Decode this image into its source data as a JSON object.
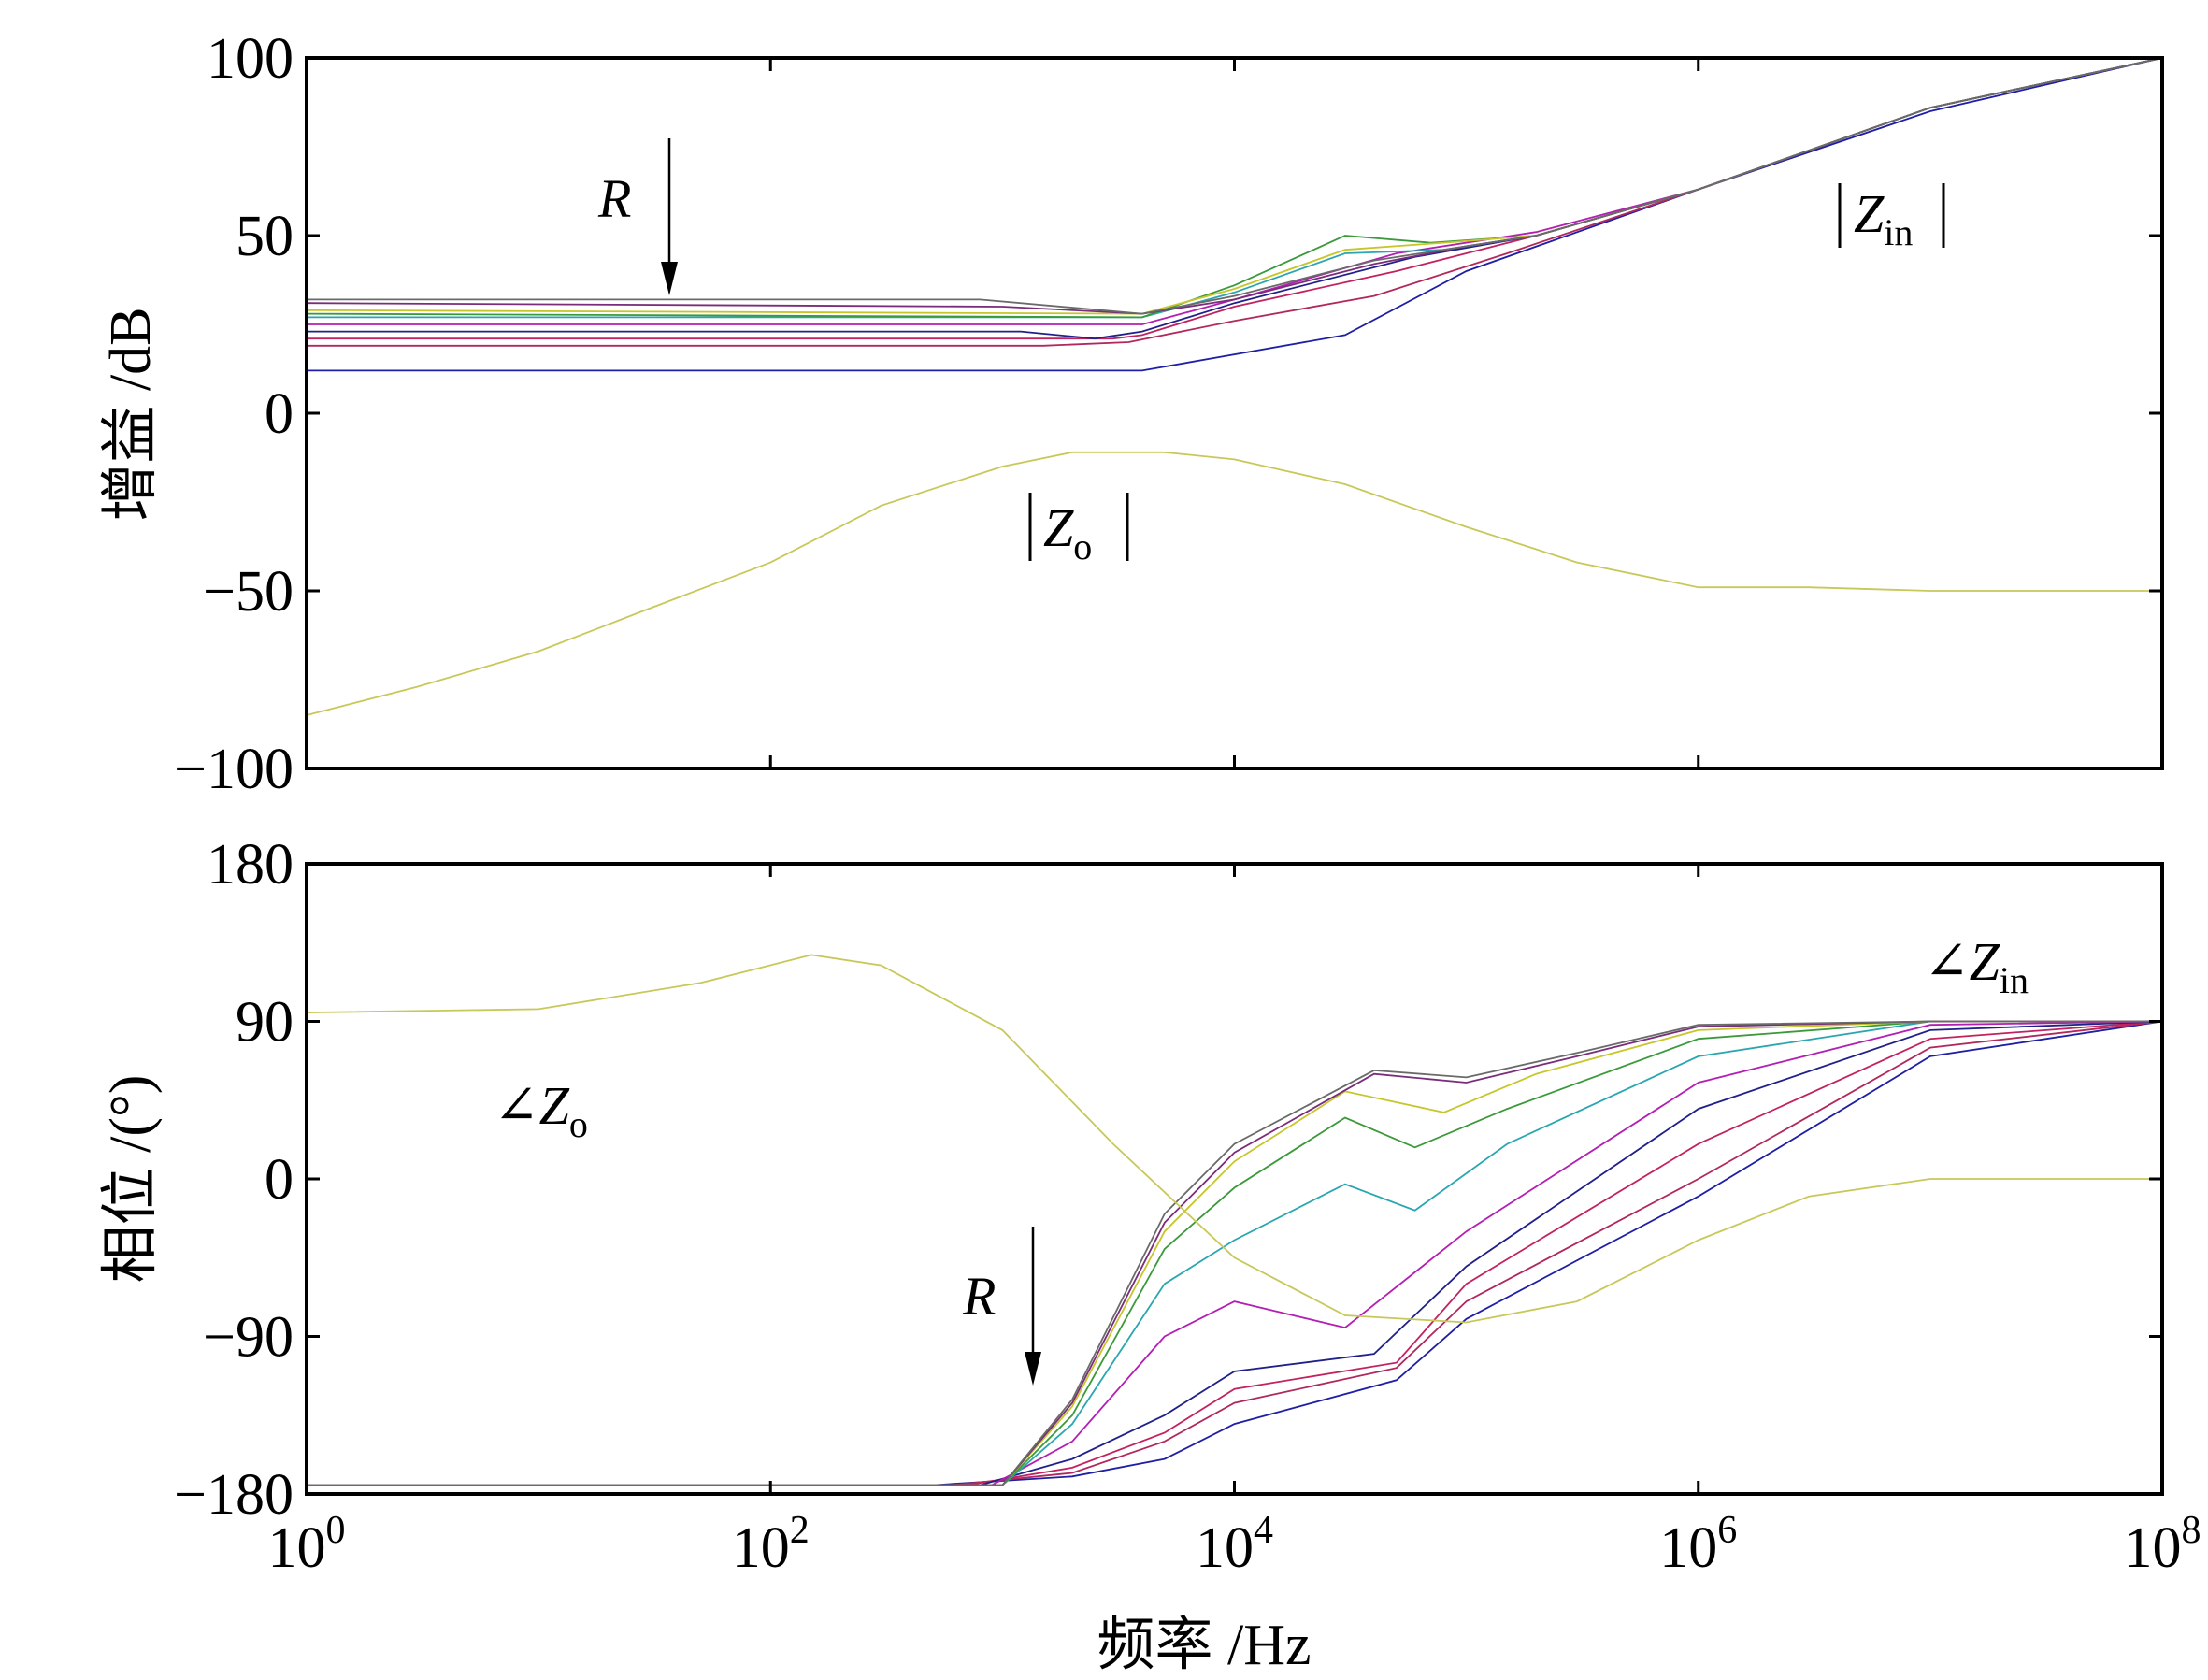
{
  "chart_data": [
    {
      "type": "line",
      "panel": "gain",
      "ylabel": "增益 /dB",
      "xscale": "log",
      "xlim": [
        1,
        100000000
      ],
      "ylim": [
        -100,
        100
      ],
      "yticks": [
        -100,
        -50,
        0,
        50,
        100
      ],
      "ytick_labels": [
        "−100",
        "−50",
        "0",
        "50",
        "100"
      ],
      "annotations": {
        "arrow_label": "R",
        "zin_label": "Z",
        "zin_sub": "in",
        "zo_label": "Z",
        "zo_sub": "o"
      },
      "colors": [
        "#1f1fa6",
        "#b0285c",
        "#c2225f",
        "#20208a",
        "#b31fb3",
        "#2aa6b0",
        "#3a9a3a",
        "#c6c62a",
        "#7a2d7a",
        "#6a6a6a"
      ],
      "zin_series": [
        {
          "values": [
            [
              1,
              12
            ],
            [
              4000,
              12
            ],
            [
              30000,
              22
            ],
            [
              100000,
              40
            ],
            [
              1000000,
              63
            ],
            [
              10000000,
              85
            ],
            [
              100000000,
              100
            ]
          ]
        },
        {
          "values": [
            [
              1,
              19
            ],
            [
              1500,
              19
            ],
            [
              3500,
              20
            ],
            [
              10000,
              26
            ],
            [
              40000,
              33
            ],
            [
              150000,
              45
            ],
            [
              1000000,
              63
            ],
            [
              10000000,
              86
            ],
            [
              100000000,
              100
            ]
          ]
        },
        {
          "values": [
            [
              1,
              21
            ],
            [
              3000,
              21
            ],
            [
              4000,
              22
            ],
            [
              10000,
              30
            ],
            [
              50000,
              40
            ],
            [
              200000,
              50
            ],
            [
              1000000,
              63
            ],
            [
              10000000,
              86
            ],
            [
              100000000,
              100
            ]
          ]
        },
        {
          "values": [
            [
              1,
              23
            ],
            [
              1200,
              23
            ],
            [
              2500,
              21
            ],
            [
              4000,
              23
            ],
            [
              10000,
              31
            ],
            [
              60000,
              44
            ],
            [
              200000,
              50
            ],
            [
              1000000,
              63
            ],
            [
              10000000,
              86
            ],
            [
              100000000,
              100
            ]
          ]
        },
        {
          "values": [
            [
              1,
              25
            ],
            [
              4000,
              25
            ],
            [
              10000,
              32
            ],
            [
              50000,
              45
            ],
            [
              200000,
              51
            ],
            [
              1000000,
              63
            ],
            [
              10000000,
              86
            ],
            [
              100000000,
              100
            ]
          ]
        },
        {
          "values": [
            [
              1,
              27
            ],
            [
              4000,
              27
            ],
            [
              10000,
              34
            ],
            [
              30000,
              45
            ],
            [
              80000,
              46
            ],
            [
              200000,
              50
            ],
            [
              1000000,
              63
            ],
            [
              10000000,
              86
            ],
            [
              100000000,
              100
            ]
          ]
        },
        {
          "values": [
            [
              1,
              28
            ],
            [
              4000,
              27
            ],
            [
              10000,
              36
            ],
            [
              30000,
              50
            ],
            [
              70000,
              48
            ],
            [
              200000,
              50
            ],
            [
              1000000,
              63
            ],
            [
              10000000,
              86
            ],
            [
              100000000,
              100
            ]
          ]
        },
        {
          "values": [
            [
              1,
              29
            ],
            [
              4000,
              28
            ],
            [
              10000,
              35
            ],
            [
              30000,
              46
            ],
            [
              80000,
              48
            ],
            [
              200000,
              50
            ],
            [
              1000000,
              63
            ],
            [
              10000000,
              86
            ],
            [
              100000000,
              100
            ]
          ]
        },
        {
          "values": [
            [
              1,
              31
            ],
            [
              1000,
              30
            ],
            [
              4000,
              28
            ],
            [
              10000,
              32
            ],
            [
              40000,
              42
            ],
            [
              100000,
              47
            ],
            [
              200000,
              50
            ],
            [
              1000000,
              63
            ],
            [
              10000000,
              86
            ],
            [
              100000000,
              100
            ]
          ]
        },
        {
          "values": [
            [
              1,
              32
            ],
            [
              800,
              32
            ],
            [
              4000,
              28
            ],
            [
              10000,
              33
            ],
            [
              40000,
              43
            ],
            [
              100000,
              47
            ],
            [
              200000,
              50
            ],
            [
              1000000,
              63
            ],
            [
              10000000,
              86
            ],
            [
              100000000,
              100
            ]
          ]
        }
      ],
      "zo_series": {
        "color": "#c8c85a",
        "values": [
          [
            1,
            -85
          ],
          [
            3,
            -77
          ],
          [
            10,
            -67
          ],
          [
            30,
            -55
          ],
          [
            100,
            -42
          ],
          [
            300,
            -26
          ],
          [
            1000,
            -15
          ],
          [
            2000,
            -11
          ],
          [
            5000,
            -11
          ],
          [
            10000,
            -13
          ],
          [
            30000,
            -20
          ],
          [
            100000,
            -32
          ],
          [
            300000,
            -42
          ],
          [
            1000000,
            -49
          ],
          [
            3000000,
            -49
          ],
          [
            10000000,
            -50
          ],
          [
            100000000,
            -50
          ]
        ]
      }
    },
    {
      "type": "line",
      "panel": "phase",
      "ylabel": "相位 /(°)",
      "xlabel": "频率 /Hz",
      "xscale": "log",
      "xlim": [
        1,
        100000000
      ],
      "ylim": [
        -180,
        180
      ],
      "yticks": [
        -180,
        -90,
        0,
        90,
        180
      ],
      "ytick_labels": [
        "−180",
        "−90",
        "0",
        "90",
        "180"
      ],
      "xticks": [
        1,
        100,
        10000,
        1000000,
        100000000
      ],
      "xtick_base": "10",
      "xtick_exponents": [
        "0",
        "2",
        "4",
        "6",
        "8"
      ],
      "annotations": {
        "arrow_label": "R",
        "zin_label": "∠Z",
        "zin_sub": "in",
        "zo_label": "∠Z",
        "zo_sub": "o"
      },
      "zin_series": [
        {
          "values": [
            [
              1,
              -175
            ],
            [
              500,
              -175
            ],
            [
              2000,
              -170
            ],
            [
              5000,
              -160
            ],
            [
              10000,
              -140
            ],
            [
              50000,
              -115
            ],
            [
              100000,
              -80
            ],
            [
              1000000,
              -10
            ],
            [
              10000000,
              70
            ],
            [
              100000000,
              90
            ]
          ]
        },
        {
          "values": [
            [
              1,
              -175
            ],
            [
              600,
              -175
            ],
            [
              2000,
              -168
            ],
            [
              5000,
              -150
            ],
            [
              10000,
              -128
            ],
            [
              50000,
              -108
            ],
            [
              100000,
              -70
            ],
            [
              1000000,
              0
            ],
            [
              10000000,
              75
            ],
            [
              100000000,
              90
            ]
          ]
        },
        {
          "values": [
            [
              1,
              -175
            ],
            [
              700,
              -175
            ],
            [
              2000,
              -165
            ],
            [
              5000,
              -145
            ],
            [
              10000,
              -120
            ],
            [
              50000,
              -105
            ],
            [
              100000,
              -60
            ],
            [
              1000000,
              20
            ],
            [
              10000000,
              80
            ],
            [
              100000000,
              90
            ]
          ]
        },
        {
          "values": [
            [
              1,
              -175
            ],
            [
              800,
              -175
            ],
            [
              2000,
              -160
            ],
            [
              5000,
              -135
            ],
            [
              10000,
              -110
            ],
            [
              40000,
              -100
            ],
            [
              100000,
              -50
            ],
            [
              1000000,
              40
            ],
            [
              10000000,
              85
            ],
            [
              100000000,
              90
            ]
          ]
        },
        {
          "values": [
            [
              1,
              -175
            ],
            [
              900,
              -175
            ],
            [
              2000,
              -150
            ],
            [
              5000,
              -90
            ],
            [
              10000,
              -70
            ],
            [
              30000,
              -85
            ],
            [
              100000,
              -30
            ],
            [
              1000000,
              55
            ],
            [
              10000000,
              88
            ],
            [
              100000000,
              90
            ]
          ]
        },
        {
          "values": [
            [
              1,
              -175
            ],
            [
              1000,
              -175
            ],
            [
              2000,
              -140
            ],
            [
              5000,
              -60
            ],
            [
              10000,
              -35
            ],
            [
              30000,
              -3
            ],
            [
              60000,
              -18
            ],
            [
              150000,
              20
            ],
            [
              1000000,
              70
            ],
            [
              10000000,
              90
            ],
            [
              100000000,
              90
            ]
          ]
        },
        {
          "values": [
            [
              1,
              -175
            ],
            [
              1000,
              -175
            ],
            [
              2000,
              -135
            ],
            [
              5000,
              -40
            ],
            [
              10000,
              -5
            ],
            [
              30000,
              35
            ],
            [
              60000,
              18
            ],
            [
              150000,
              40
            ],
            [
              1000000,
              80
            ],
            [
              10000000,
              90
            ],
            [
              100000000,
              90
            ]
          ]
        },
        {
          "values": [
            [
              1,
              -175
            ],
            [
              1000,
              -175
            ],
            [
              2000,
              -130
            ],
            [
              5000,
              -30
            ],
            [
              10000,
              10
            ],
            [
              30000,
              50
            ],
            [
              80000,
              38
            ],
            [
              200000,
              60
            ],
            [
              1000000,
              85
            ],
            [
              10000000,
              90
            ],
            [
              100000000,
              90
            ]
          ]
        },
        {
          "values": [
            [
              1,
              -175
            ],
            [
              1000,
              -175
            ],
            [
              2000,
              -128
            ],
            [
              5000,
              -25
            ],
            [
              10000,
              15
            ],
            [
              40000,
              60
            ],
            [
              100000,
              55
            ],
            [
              300000,
              70
            ],
            [
              1000000,
              87
            ],
            [
              10000000,
              90
            ],
            [
              100000000,
              90
            ]
          ]
        },
        {
          "values": [
            [
              1,
              -175
            ],
            [
              1000,
              -175
            ],
            [
              2000,
              -126
            ],
            [
              5000,
              -20
            ],
            [
              10000,
              20
            ],
            [
              40000,
              62
            ],
            [
              100000,
              58
            ],
            [
              300000,
              72
            ],
            [
              1000000,
              88
            ],
            [
              10000000,
              90
            ],
            [
              100000000,
              90
            ]
          ]
        }
      ],
      "zo_series": {
        "color": "#c8c85a",
        "values": [
          [
            1,
            95
          ],
          [
            10,
            97
          ],
          [
            50,
            112
          ],
          [
            150,
            128
          ],
          [
            300,
            122
          ],
          [
            1000,
            85
          ],
          [
            3000,
            20
          ],
          [
            10000,
            -45
          ],
          [
            30000,
            -78
          ],
          [
            100000,
            -82
          ],
          [
            300000,
            -70
          ],
          [
            1000000,
            -35
          ],
          [
            3000000,
            -10
          ],
          [
            10000000,
            0
          ],
          [
            100000000,
            0
          ]
        ]
      }
    }
  ]
}
